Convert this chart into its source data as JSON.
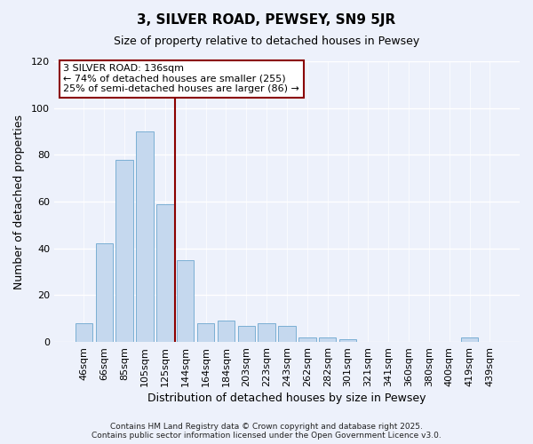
{
  "title": "3, SILVER ROAD, PEWSEY, SN9 5JR",
  "subtitle": "Size of property relative to detached houses in Pewsey",
  "xlabel": "Distribution of detached houses by size in Pewsey",
  "ylabel": "Number of detached properties",
  "categories": [
    "46sqm",
    "66sqm",
    "85sqm",
    "105sqm",
    "125sqm",
    "144sqm",
    "164sqm",
    "184sqm",
    "203sqm",
    "223sqm",
    "243sqm",
    "262sqm",
    "282sqm",
    "301sqm",
    "321sqm",
    "341sqm",
    "360sqm",
    "380sqm",
    "400sqm",
    "419sqm",
    "439sqm"
  ],
  "values": [
    8,
    42,
    78,
    90,
    59,
    35,
    8,
    9,
    7,
    8,
    7,
    2,
    2,
    1,
    0,
    0,
    0,
    0,
    0,
    2,
    0
  ],
  "bar_color": "#c5d8ee",
  "bar_edge_color": "#7bafd4",
  "reference_line_color": "#8b0000",
  "annotation_title": "3 SILVER ROAD: 136sqm",
  "annotation_line1": "← 74% of detached houses are smaller (255)",
  "annotation_line2": "25% of semi-detached houses are larger (86) →",
  "annotation_box_color": "#ffffff",
  "annotation_box_edge": "#8b0000",
  "ylim": [
    0,
    120
  ],
  "yticks": [
    0,
    20,
    40,
    60,
    80,
    100,
    120
  ],
  "background_color": "#edf1fb",
  "footer1": "Contains HM Land Registry data © Crown copyright and database right 2025.",
  "footer2": "Contains public sector information licensed under the Open Government Licence v3.0."
}
